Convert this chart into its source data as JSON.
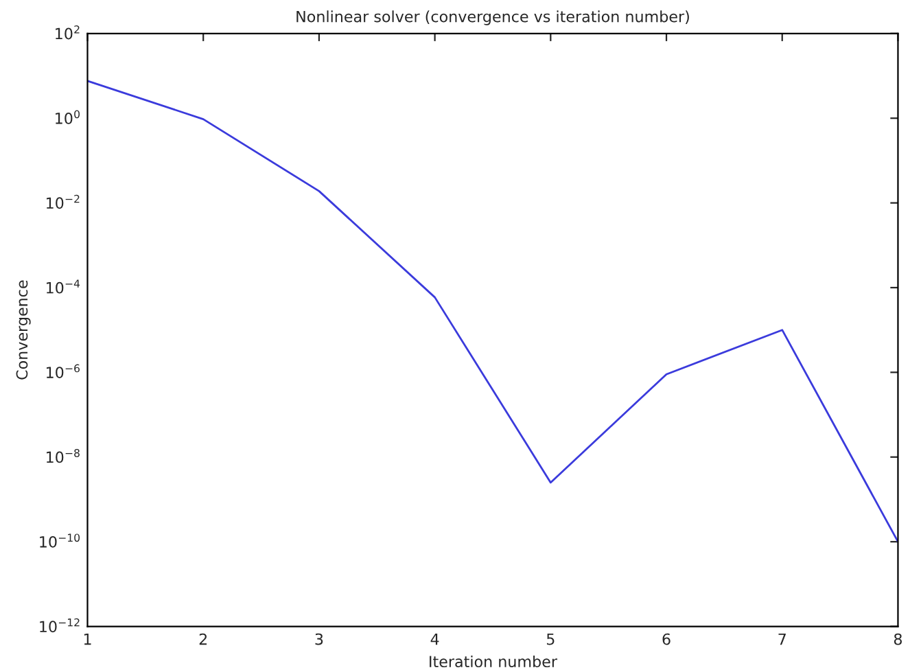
{
  "chart_data": {
    "type": "line",
    "title": "Nonlinear solver (convergence vs iteration number)",
    "xlabel": "Iteration number",
    "ylabel": "Convergence",
    "x": [
      1,
      2,
      3,
      4,
      5,
      6,
      7,
      8
    ],
    "series": [
      {
        "color": "#3b3bdc",
        "values": [
          7.6,
          0.95,
          0.019,
          5.9e-05,
          2.5e-09,
          9e-07,
          1e-05,
          1e-10
        ]
      }
    ],
    "log": "y",
    "xlim": [
      1,
      8
    ],
    "ylim": [
      1e-12,
      100
    ],
    "xticks": [
      1,
      2,
      3,
      4,
      5,
      6,
      7,
      8
    ],
    "yticks": [
      {
        "value": 1e-12,
        "label": "10$^{−12}$"
      },
      {
        "value": 1e-10,
        "label": "10$^{−10}$"
      },
      {
        "value": 1e-08,
        "label": "10$^{−8}$"
      },
      {
        "value": 1e-06,
        "label": "10$^{−6}$"
      },
      {
        "value": 0.0001,
        "label": "10$^{−4}$"
      },
      {
        "value": 0.01,
        "label": "10$^{−2}$"
      },
      {
        "value": 1,
        "label": "10$^{0}$"
      },
      {
        "value": 100,
        "label": "10$^{2}$"
      }
    ],
    "grid": false,
    "marker": "none",
    "line_style": "solid"
  }
}
